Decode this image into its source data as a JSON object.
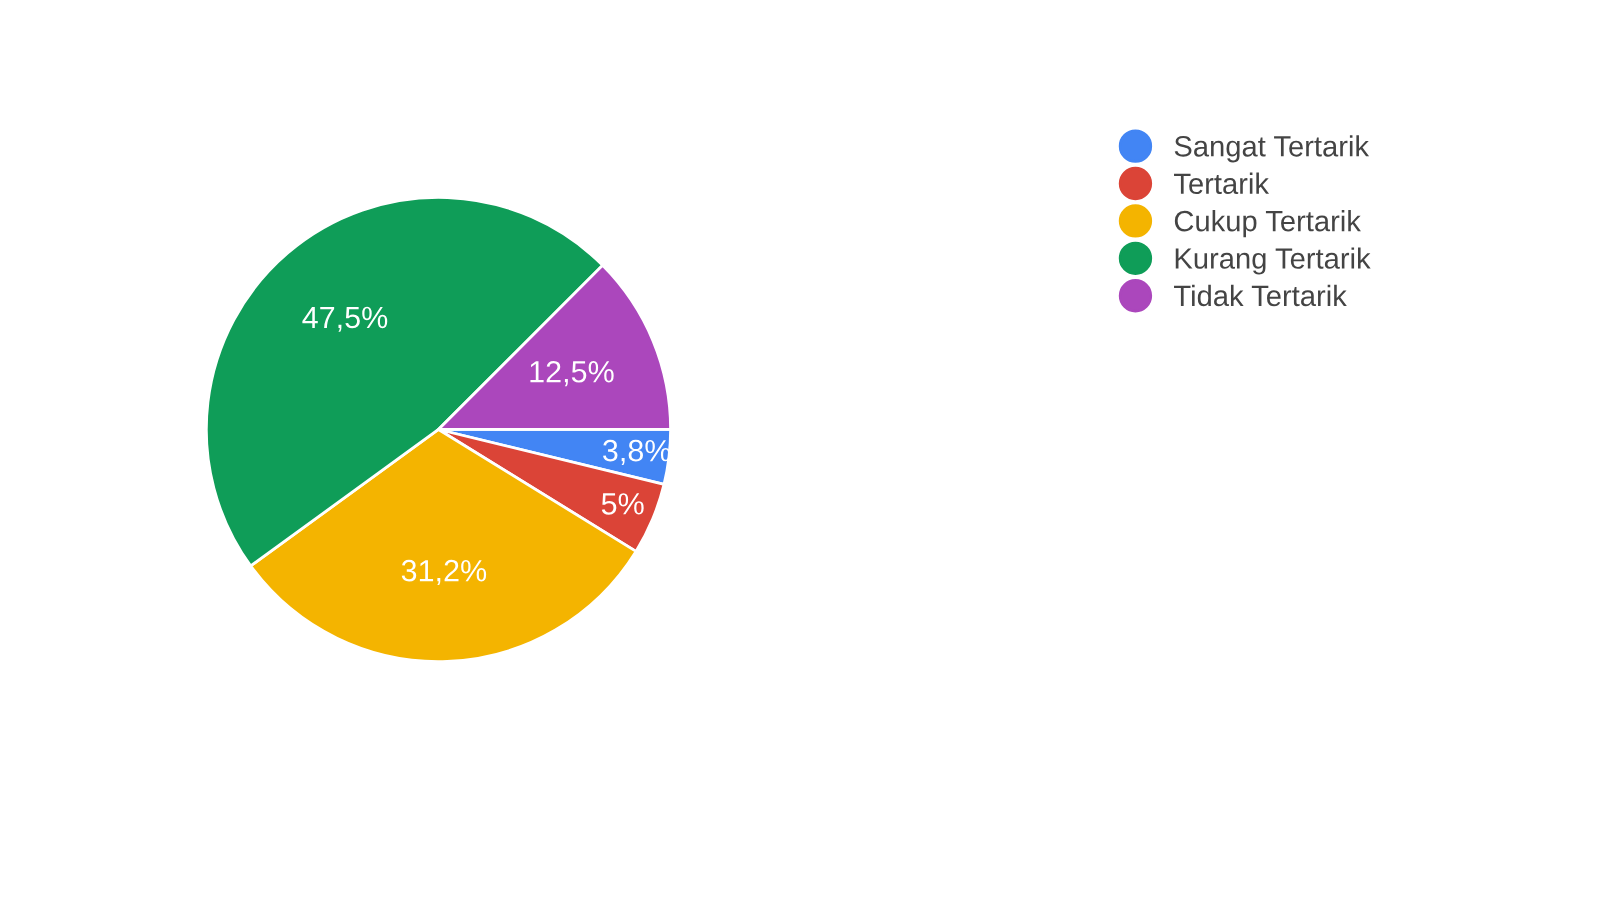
{
  "chart_data": {
    "type": "pie",
    "categories": [
      "Sangat Tertarik",
      "Tertarik",
      "Cukup Tertarik",
      "Kurang Tertarik",
      "Tidak Tertarik"
    ],
    "values": [
      3.8,
      5,
      31.2,
      47.5,
      12.5
    ],
    "value_labels": [
      "3,8%",
      "5%",
      "31,2%",
      "47,5%",
      "12,5%"
    ],
    "colors": [
      "#4285f4",
      "#db4437",
      "#f4b400",
      "#0f9d58",
      "#ab47bc"
    ],
    "legend": "top right"
  }
}
